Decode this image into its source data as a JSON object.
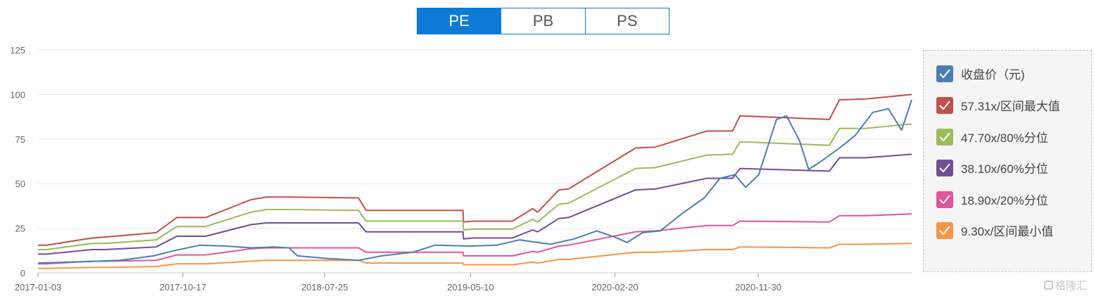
{
  "tabs": [
    {
      "label": "PE",
      "active": true
    },
    {
      "label": "PB",
      "active": false
    },
    {
      "label": "PS",
      "active": false
    }
  ],
  "watermark": "格隆汇",
  "legend": [
    {
      "label": "收盘价（元)",
      "color": "#4a7eb3",
      "icon": "check-icon"
    },
    {
      "label": "57.31x/区间最大值",
      "color": "#c0504d",
      "icon": "check-icon"
    },
    {
      "label": "47.70x/80%分位",
      "color": "#9bbb59",
      "icon": "check-icon"
    },
    {
      "label": "38.10x/60%分位",
      "color": "#6f4e98",
      "icon": "check-icon"
    },
    {
      "label": "18.90x/20%分位",
      "color": "#e0569a",
      "icon": "check-icon"
    },
    {
      "label": "9.30x/区间最小值",
      "color": "#f79646",
      "icon": "check-icon"
    }
  ],
  "chart_data": {
    "type": "line",
    "x_type": "date",
    "xlim": [
      "2017-01-03",
      "2021-09-30"
    ],
    "ylim": [
      0,
      125
    ],
    "yticks": [
      0,
      25,
      50,
      75,
      100,
      125
    ],
    "xticks": [
      "2017-01-03",
      "2017-10-17",
      "2018-07-25",
      "2019-05-10",
      "2020-02-20",
      "2020-11-30"
    ],
    "grid": true,
    "legend_position": "right",
    "series": [
      {
        "name": "收盘价（元)",
        "color": "#4a7eb3",
        "points": [
          [
            "2017-01-03",
            5.5
          ],
          [
            "2017-04-01",
            6.2
          ],
          [
            "2017-06-15",
            7.0
          ],
          [
            "2017-08-20",
            9.5
          ],
          [
            "2017-10-01",
            12.5
          ],
          [
            "2017-11-20",
            15.5
          ],
          [
            "2018-01-10",
            15.0
          ],
          [
            "2018-03-01",
            14.0
          ],
          [
            "2018-04-15",
            14.5
          ],
          [
            "2018-05-15",
            14.0
          ],
          [
            "2018-06-01",
            9.5
          ],
          [
            "2018-08-01",
            8.0
          ],
          [
            "2018-10-01",
            7.0
          ],
          [
            "2018-11-15",
            9.5
          ],
          [
            "2019-01-15",
            11.5
          ],
          [
            "2019-03-01",
            15.5
          ],
          [
            "2019-05-10",
            15.0
          ],
          [
            "2019-07-01",
            15.5
          ],
          [
            "2019-08-15",
            18.5
          ],
          [
            "2019-10-15",
            16.0
          ],
          [
            "2019-12-01",
            19.0
          ],
          [
            "2020-01-15",
            23.5
          ],
          [
            "2020-02-20",
            20.0
          ],
          [
            "2020-03-15",
            17.0
          ],
          [
            "2020-04-15",
            22.5
          ],
          [
            "2020-05-20",
            23.5
          ],
          [
            "2020-07-01",
            33.0
          ],
          [
            "2020-08-15",
            42.0
          ],
          [
            "2020-09-15",
            53.0
          ],
          [
            "2020-10-15",
            55.0
          ],
          [
            "2020-11-05",
            48.0
          ],
          [
            "2020-12-01",
            55.0
          ],
          [
            "2021-01-05",
            86.0
          ],
          [
            "2021-01-25",
            88.0
          ],
          [
            "2021-02-20",
            74.0
          ],
          [
            "2021-03-10",
            58.0
          ],
          [
            "2021-04-01",
            62.0
          ],
          [
            "2021-05-10",
            70.0
          ],
          [
            "2021-06-10",
            77.0
          ],
          [
            "2021-07-15",
            90.0
          ],
          [
            "2021-08-15",
            92.0
          ],
          [
            "2021-09-10",
            80.0
          ],
          [
            "2021-09-30",
            97.0
          ]
        ]
      },
      {
        "name": "57.31x/区间最大值",
        "color": "#c0504d",
        "points": [
          [
            "2017-01-03",
            15.5
          ],
          [
            "2017-01-20",
            15.5
          ],
          [
            "2017-04-20",
            19.5
          ],
          [
            "2017-05-15",
            20.0
          ],
          [
            "2017-08-25",
            22.5
          ],
          [
            "2017-10-05",
            31.0
          ],
          [
            "2017-12-01",
            31.0
          ],
          [
            "2018-03-01",
            41.0
          ],
          [
            "2018-04-01",
            42.5
          ],
          [
            "2018-05-15",
            42.5
          ],
          [
            "2018-09-30",
            42.0
          ],
          [
            "2018-10-15",
            35.0
          ],
          [
            "2019-04-25",
            35.0
          ],
          [
            "2019-04-26",
            28.5
          ],
          [
            "2019-05-15",
            29.0
          ],
          [
            "2019-08-01",
            29.0
          ],
          [
            "2019-09-10",
            36.0
          ],
          [
            "2019-09-20",
            34.0
          ],
          [
            "2019-11-01",
            46.5
          ],
          [
            "2019-11-20",
            47.0
          ],
          [
            "2020-04-01",
            70.0
          ],
          [
            "2020-05-10",
            70.5
          ],
          [
            "2020-08-20",
            79.5
          ],
          [
            "2020-10-10",
            79.5
          ],
          [
            "2020-10-25",
            88.0
          ],
          [
            "2021-04-20",
            86.0
          ],
          [
            "2021-05-10",
            97.0
          ],
          [
            "2021-07-01",
            97.5
          ],
          [
            "2021-09-30",
            100.0
          ]
        ]
      },
      {
        "name": "47.70x/80%分位",
        "color": "#9bbb59",
        "points": [
          [
            "2017-01-03",
            13.0
          ],
          [
            "2017-01-20",
            13.0
          ],
          [
            "2017-04-20",
            16.5
          ],
          [
            "2017-05-15",
            16.5
          ],
          [
            "2017-08-25",
            18.5
          ],
          [
            "2017-10-05",
            26.0
          ],
          [
            "2017-12-01",
            26.0
          ],
          [
            "2018-03-01",
            34.0
          ],
          [
            "2018-04-01",
            35.5
          ],
          [
            "2018-05-15",
            35.5
          ],
          [
            "2018-09-30",
            35.0
          ],
          [
            "2018-10-15",
            29.0
          ],
          [
            "2019-04-25",
            29.0
          ],
          [
            "2019-04-26",
            24.0
          ],
          [
            "2019-05-15",
            24.5
          ],
          [
            "2019-08-01",
            24.5
          ],
          [
            "2019-09-10",
            30.0
          ],
          [
            "2019-09-20",
            28.5
          ],
          [
            "2019-11-01",
            38.5
          ],
          [
            "2019-11-20",
            39.0
          ],
          [
            "2020-04-01",
            58.5
          ],
          [
            "2020-05-10",
            59.0
          ],
          [
            "2020-08-20",
            66.0
          ],
          [
            "2020-10-10",
            66.5
          ],
          [
            "2020-10-25",
            73.5
          ],
          [
            "2021-04-20",
            71.5
          ],
          [
            "2021-05-10",
            81.0
          ],
          [
            "2021-07-01",
            81.0
          ],
          [
            "2021-09-30",
            83.5
          ]
        ]
      },
      {
        "name": "38.10x/60%分位",
        "color": "#6f4e98",
        "points": [
          [
            "2017-01-03",
            10.5
          ],
          [
            "2017-01-20",
            10.5
          ],
          [
            "2017-04-20",
            13.0
          ],
          [
            "2017-05-15",
            13.0
          ],
          [
            "2017-08-25",
            14.5
          ],
          [
            "2017-10-05",
            20.5
          ],
          [
            "2017-12-01",
            20.5
          ],
          [
            "2018-03-01",
            27.0
          ],
          [
            "2018-04-01",
            28.0
          ],
          [
            "2018-05-15",
            28.0
          ],
          [
            "2018-09-30",
            28.0
          ],
          [
            "2018-10-15",
            23.0
          ],
          [
            "2019-04-25",
            23.0
          ],
          [
            "2019-04-26",
            19.0
          ],
          [
            "2019-05-15",
            19.5
          ],
          [
            "2019-08-01",
            19.5
          ],
          [
            "2019-09-10",
            24.0
          ],
          [
            "2019-09-20",
            23.0
          ],
          [
            "2019-11-01",
            30.5
          ],
          [
            "2019-11-20",
            31.0
          ],
          [
            "2020-04-01",
            46.5
          ],
          [
            "2020-05-10",
            47.0
          ],
          [
            "2020-08-20",
            53.0
          ],
          [
            "2020-10-10",
            53.0
          ],
          [
            "2020-10-25",
            58.5
          ],
          [
            "2021-04-20",
            57.0
          ],
          [
            "2021-05-10",
            64.5
          ],
          [
            "2021-07-01",
            64.5
          ],
          [
            "2021-09-30",
            66.5
          ]
        ]
      },
      {
        "name": "18.90x/20%分位",
        "color": "#e0569a",
        "points": [
          [
            "2017-01-03",
            5.0
          ],
          [
            "2017-01-20",
            5.0
          ],
          [
            "2017-04-20",
            6.5
          ],
          [
            "2017-05-15",
            6.5
          ],
          [
            "2017-08-25",
            7.0
          ],
          [
            "2017-10-05",
            10.0
          ],
          [
            "2017-12-01",
            10.0
          ],
          [
            "2018-03-01",
            13.5
          ],
          [
            "2018-04-01",
            14.0
          ],
          [
            "2018-05-15",
            14.0
          ],
          [
            "2018-09-30",
            14.0
          ],
          [
            "2018-10-15",
            11.5
          ],
          [
            "2019-04-25",
            11.5
          ],
          [
            "2019-04-26",
            9.5
          ],
          [
            "2019-05-15",
            9.5
          ],
          [
            "2019-08-01",
            9.5
          ],
          [
            "2019-09-10",
            12.0
          ],
          [
            "2019-09-20",
            11.5
          ],
          [
            "2019-11-01",
            15.0
          ],
          [
            "2019-11-20",
            15.5
          ],
          [
            "2020-04-01",
            23.0
          ],
          [
            "2020-05-10",
            23.5
          ],
          [
            "2020-08-20",
            26.5
          ],
          [
            "2020-10-10",
            26.5
          ],
          [
            "2020-10-25",
            29.0
          ],
          [
            "2021-04-20",
            28.5
          ],
          [
            "2021-05-10",
            32.0
          ],
          [
            "2021-07-01",
            32.0
          ],
          [
            "2021-09-30",
            33.0
          ]
        ]
      },
      {
        "name": "9.30x/区间最小值",
        "color": "#f79646",
        "points": [
          [
            "2017-01-03",
            2.5
          ],
          [
            "2017-01-20",
            2.5
          ],
          [
            "2017-04-20",
            3.0
          ],
          [
            "2017-05-15",
            3.0
          ],
          [
            "2017-08-25",
            3.5
          ],
          [
            "2017-10-05",
            5.0
          ],
          [
            "2017-12-01",
            5.0
          ],
          [
            "2018-03-01",
            6.5
          ],
          [
            "2018-04-01",
            7.0
          ],
          [
            "2018-05-15",
            7.0
          ],
          [
            "2018-09-30",
            7.0
          ],
          [
            "2018-10-15",
            5.5
          ],
          [
            "2019-04-25",
            5.5
          ],
          [
            "2019-04-26",
            4.5
          ],
          [
            "2019-05-15",
            4.5
          ],
          [
            "2019-08-01",
            4.5
          ],
          [
            "2019-09-10",
            6.0
          ],
          [
            "2019-09-20",
            5.5
          ],
          [
            "2019-11-01",
            7.5
          ],
          [
            "2019-11-20",
            7.5
          ],
          [
            "2020-04-01",
            11.5
          ],
          [
            "2020-05-10",
            11.5
          ],
          [
            "2020-08-20",
            13.0
          ],
          [
            "2020-10-10",
            13.0
          ],
          [
            "2020-10-25",
            14.5
          ],
          [
            "2021-04-20",
            14.0
          ],
          [
            "2021-05-10",
            16.0
          ],
          [
            "2021-07-01",
            16.0
          ],
          [
            "2021-09-30",
            16.5
          ]
        ]
      }
    ]
  }
}
